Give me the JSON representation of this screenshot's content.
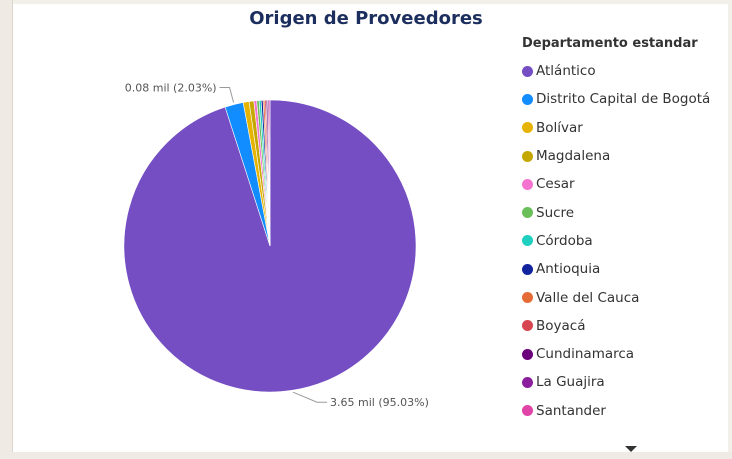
{
  "chart_data": {
    "type": "pie",
    "title": "Origen de Proveedores",
    "legend_title": "Departamento estandar",
    "legend_position": "right",
    "slices": [
      {
        "name": "Atlántico",
        "value": 3650,
        "percent": 95.03,
        "color": "#744ec2"
      },
      {
        "name": "Distrito Capital de Bogotá",
        "value": 78,
        "percent": 2.03,
        "color": "#118dff"
      },
      {
        "name": "Bolívar",
        "value": 25,
        "percent": 0.65,
        "color": "#e6b400"
      },
      {
        "name": "Magdalena",
        "value": 20,
        "percent": 0.52,
        "color": "#c4a800"
      },
      {
        "name": "Cesar",
        "value": 12,
        "percent": 0.31,
        "color": "#f472d0"
      },
      {
        "name": "Sucre",
        "value": 10,
        "percent": 0.26,
        "color": "#6bbf59"
      },
      {
        "name": "Córdoba",
        "value": 9,
        "percent": 0.23,
        "color": "#1fcfc0"
      },
      {
        "name": "Antioquia",
        "value": 8,
        "percent": 0.21,
        "color": "#12239e"
      },
      {
        "name": "Valle del Cauca",
        "value": 7,
        "percent": 0.18,
        "color": "#e66c37"
      },
      {
        "name": "Boyacá",
        "value": 6,
        "percent": 0.16,
        "color": "#d64550"
      },
      {
        "name": "Cundinamarca",
        "value": 6,
        "percent": 0.16,
        "color": "#6b007b"
      },
      {
        "name": "La Guajira",
        "value": 5,
        "percent": 0.13,
        "color": "#8a1e9c"
      },
      {
        "name": "Santander",
        "value": 5,
        "percent": 0.13,
        "color": "#e044a7"
      }
    ],
    "data_labels": [
      {
        "text": "0.08 mil (2.03%)",
        "slice": 1
      },
      {
        "text": "3.65 mil (95.03%)",
        "slice": 0
      }
    ]
  }
}
